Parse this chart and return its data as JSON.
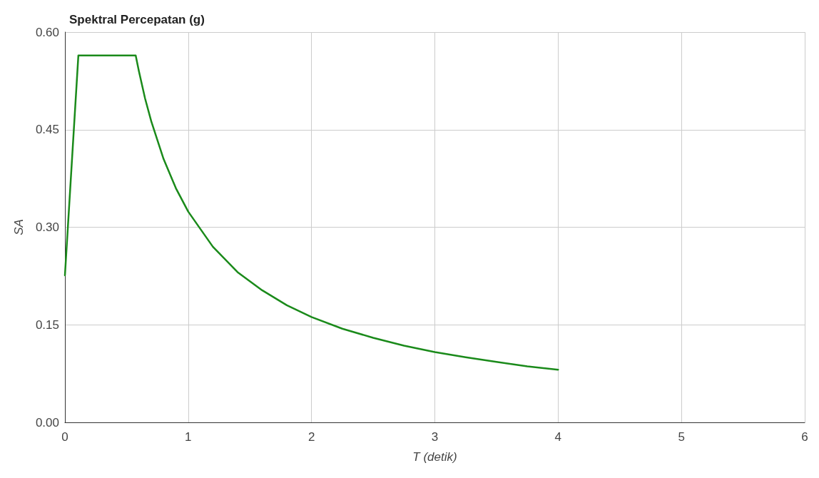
{
  "chart_data": {
    "type": "line",
    "title": "Spektral Percepatan (g)",
    "xlabel": "T (detik)",
    "ylabel": "SA",
    "series": [
      {
        "color": "#1a8a1a",
        "x": [
          0,
          0.109,
          0.574,
          0.6,
          0.65,
          0.7,
          0.8,
          0.9,
          1.0,
          1.2,
          1.4,
          1.6,
          1.8,
          2.0,
          2.25,
          2.5,
          2.75,
          3.0,
          3.25,
          3.5,
          3.75,
          4.0
        ],
        "values": [
          0.226,
          0.564,
          0.564,
          0.54,
          0.498,
          0.463,
          0.405,
          0.36,
          0.324,
          0.27,
          0.231,
          0.203,
          0.18,
          0.162,
          0.144,
          0.13,
          0.118,
          0.108,
          0.1,
          0.093,
          0.086,
          0.081
        ]
      }
    ],
    "xlim": [
      0,
      6
    ],
    "xticks": [
      0,
      1,
      2,
      3,
      4,
      5,
      6
    ],
    "ylim": [
      0,
      0.6
    ],
    "yticks": [
      {
        "value": 0,
        "label": "0.00"
      },
      {
        "value": 0.15,
        "label": "0.15"
      },
      {
        "value": 0.3,
        "label": "0.30"
      },
      {
        "value": 0.45,
        "label": "0.45"
      },
      {
        "value": 0.6,
        "label": "0.60"
      }
    ],
    "grid": true,
    "marker": "none",
    "line_style": "solid"
  }
}
